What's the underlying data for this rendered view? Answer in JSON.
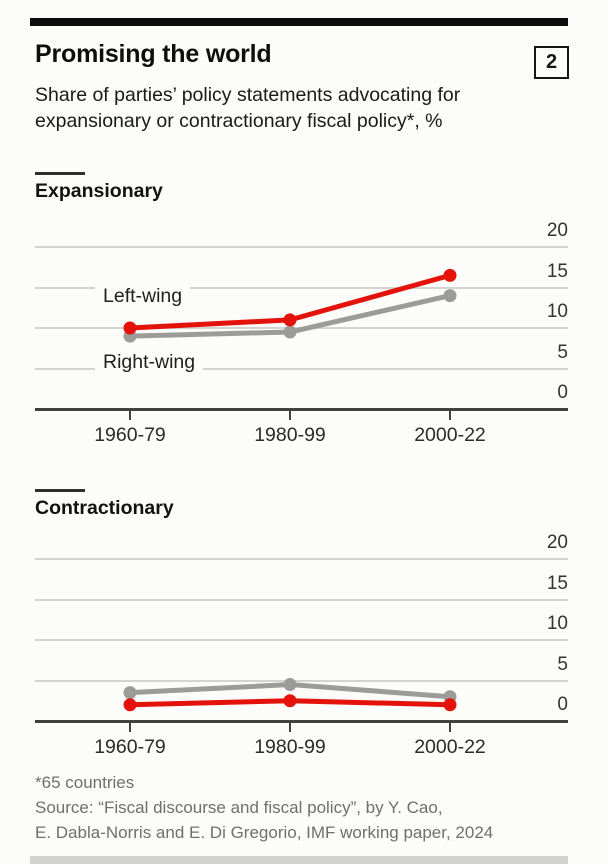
{
  "header": {
    "title": "Promising the world",
    "figure_number": "2",
    "subtitle_lines": [
      "Share of parties’ policy statements advocating for",
      "expansionary or contractionary fiscal policy*, %"
    ]
  },
  "footer": {
    "footnote": "*65 countries",
    "source_lines": [
      "Source: “Fiscal discourse and fiscal policy”, by Y. Cao,",
      "E. Dabla-Norris and E. Di Gregorio, IMF working paper, 2024"
    ]
  },
  "colors": {
    "left_wing": "#e3120b",
    "right_wing": "#9b9b99",
    "gridline": "#d3d3d1",
    "axis": "#404040",
    "accent_bar": "#0d0d0d",
    "text_gray": "#6f6f6f"
  },
  "chart_data": [
    {
      "type": "line",
      "title": "Expansionary",
      "categories": [
        "1960-79",
        "1980-99",
        "2000-22"
      ],
      "series": [
        {
          "name": "Left-wing",
          "color_key": "left_wing",
          "values": [
            10,
            11,
            16.5
          ]
        },
        {
          "name": "Right-wing",
          "color_key": "right_wing",
          "values": [
            9,
            9.5,
            14
          ]
        }
      ],
      "ylim": [
        0,
        20
      ],
      "y_ticks": [
        20,
        15,
        10,
        5,
        0
      ],
      "grid": true,
      "legend": "inline-labels"
    },
    {
      "type": "line",
      "title": "Contractionary",
      "categories": [
        "1960-79",
        "1980-99",
        "2000-22"
      ],
      "series": [
        {
          "name": "Left-wing",
          "color_key": "left_wing",
          "values": [
            2,
            2.5,
            2
          ]
        },
        {
          "name": "Right-wing",
          "color_key": "right_wing",
          "values": [
            3.5,
            4.5,
            3
          ]
        }
      ],
      "ylim": [
        0,
        20
      ],
      "y_ticks": [
        20,
        15,
        10,
        5,
        0
      ],
      "grid": true,
      "legend": "none"
    }
  ]
}
